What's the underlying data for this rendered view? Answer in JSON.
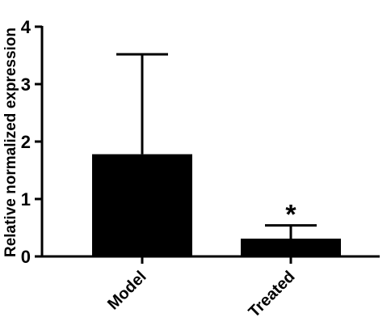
{
  "chart_data": {
    "type": "bar",
    "categories": [
      "Model",
      "Treated"
    ],
    "values": [
      1.78,
      0.31
    ],
    "error_upper": [
      3.52,
      0.54
    ],
    "annotations": [
      "",
      "*"
    ],
    "ylabel": "Relative normalized expression",
    "xlabel": "",
    "title": "",
    "ylim": [
      0,
      4
    ],
    "yticks": [
      0,
      1,
      2,
      3,
      4
    ],
    "grid": false,
    "colors": {
      "bar": "#000000",
      "axis": "#000000",
      "background": "#ffffff"
    }
  }
}
